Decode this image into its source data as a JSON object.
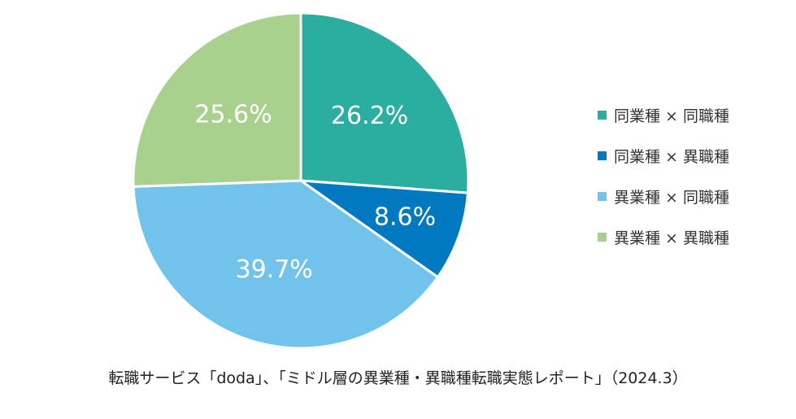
{
  "chart_data": {
    "type": "pie",
    "categories": [
      "同業種×同職種",
      "同業種×異職種",
      "異業種×同職種",
      "異業種×異職種"
    ],
    "values": [
      26.2,
      8.6,
      39.7,
      25.6
    ],
    "data_labels": [
      "26.2%",
      "8.6%",
      "39.7%",
      "25.6%"
    ],
    "colors": [
      "#2bada0",
      "#0079c1",
      "#72c3ec",
      "#a9d18e"
    ],
    "legend": [
      "同業種 × 同職種",
      "同業種 × 異職種",
      "異業種 × 同職種",
      "異業種 × 異職種"
    ],
    "legend_placement": "right",
    "start_angle_deg": 0,
    "direction": "clockwise",
    "slice_border_color": "#ffffff"
  },
  "caption": "転職サービス「doda」、「ミドル層の異業種・異職種転職実態レポート」（2024.3）"
}
